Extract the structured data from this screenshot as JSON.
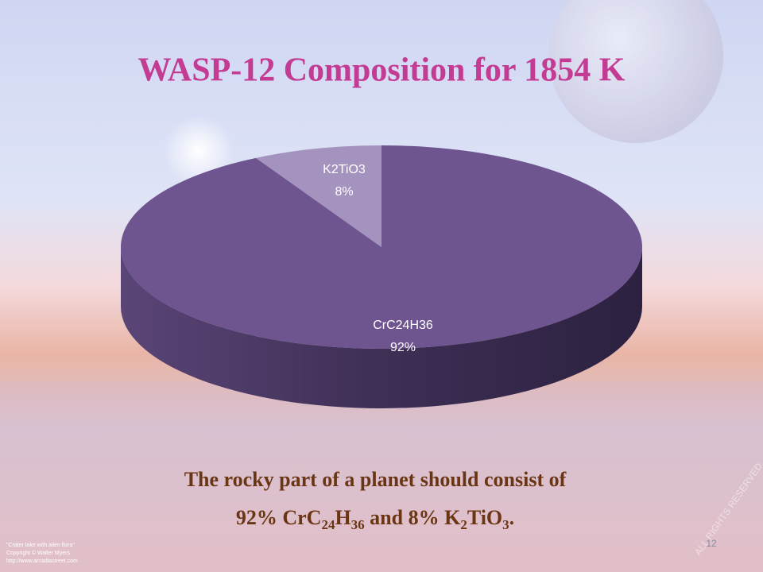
{
  "chart_data": {
    "type": "pie",
    "title": "WASP-12 Composition for 1854 K",
    "categories": [
      "CrC24H36",
      "K2TiO3"
    ],
    "values": [
      92,
      8
    ],
    "value_labels": [
      "92%",
      "8%"
    ],
    "colors": [
      "#6e5590",
      "#a593bf"
    ]
  },
  "caption": [
    "The rocky part of a planet should consist of",
    "92% CrC",
    "24",
    "H",
    "36",
    " and 8% K",
    "2",
    "TiO",
    "3",
    "."
  ],
  "credits": [
    "\"Crater lake with alien flora\"",
    "Copyright © Walter Myers",
    "http://www.arcadiastreet.com"
  ],
  "watermark": "ALL RIGHTS RESERVED",
  "page_number": "12"
}
